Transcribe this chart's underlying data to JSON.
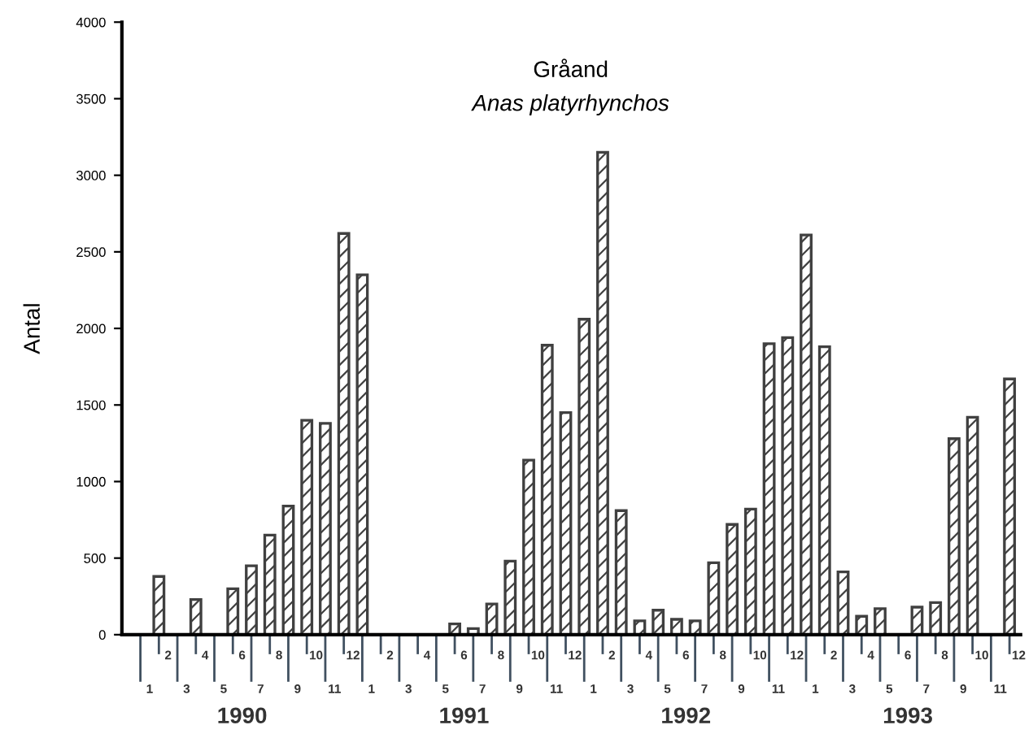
{
  "chart_data": {
    "type": "bar",
    "title": "Gråand",
    "subtitle": "Anas platyrhynchos",
    "ylabel": "Antal",
    "categories": [
      "1",
      "2",
      "3",
      "4",
      "5",
      "6",
      "7",
      "8",
      "9",
      "10",
      "11",
      "12",
      "1",
      "2",
      "3",
      "4",
      "5",
      "6",
      "7",
      "8",
      "9",
      "10",
      "11",
      "12",
      "1",
      "2",
      "3",
      "4",
      "5",
      "6",
      "7",
      "8",
      "9",
      "10",
      "11",
      "12",
      "1",
      "2",
      "3",
      "4",
      "5",
      "6",
      "7",
      "8",
      "9",
      "10",
      "11",
      "12"
    ],
    "values": [
      0,
      380,
      0,
      230,
      0,
      300,
      450,
      650,
      840,
      1400,
      1380,
      2620,
      2350,
      0,
      0,
      0,
      0,
      70,
      40,
      200,
      480,
      1140,
      1890,
      1450,
      2060,
      3150,
      810,
      90,
      160,
      100,
      90,
      470,
      720,
      820,
      1900,
      1940,
      2610,
      1880,
      410,
      120,
      170,
      0,
      180,
      210,
      1280,
      1420,
      0,
      1670
    ],
    "color": "#404040",
    "ylim": [
      0,
      4000
    ],
    "yticks": [
      0,
      500,
      1000,
      1500,
      2000,
      2500,
      3000,
      3500,
      4000
    ],
    "grid": false,
    "annotations": [
      "1990",
      "1991",
      "1992",
      "1993"
    ]
  }
}
